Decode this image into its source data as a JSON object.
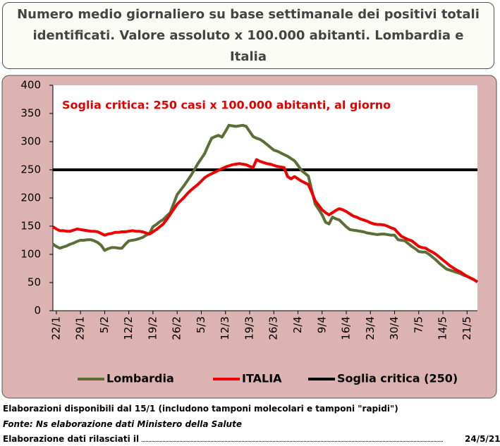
{
  "chart_data": {
    "type": "line",
    "title": "Numero medio giornaliero su base settimanale dei positivi totali identificati. Valore assoluto x 100.000 abitanti. Lombardia e Italia",
    "annotation": "Soglia  critica:  250 casi x 100.000 abitanti,  al giorno",
    "categories": [
      null,
      "22/1",
      null,
      null,
      null,
      null,
      null,
      null,
      "29/1",
      null,
      null,
      null,
      null,
      null,
      null,
      "5/2",
      null,
      null,
      null,
      null,
      null,
      null,
      "12/2",
      null,
      null,
      null,
      null,
      null,
      null,
      "19/2",
      null,
      null,
      null,
      null,
      null,
      null,
      "26/2",
      null,
      null,
      null,
      null,
      null,
      null,
      "5/3",
      null,
      null,
      null,
      null,
      null,
      null,
      "12/3",
      null,
      null,
      null,
      null,
      null,
      null,
      "19/3",
      null,
      null,
      null,
      null,
      null,
      null,
      "26/3",
      null,
      null,
      null,
      null,
      null,
      null,
      "2/4",
      null,
      null,
      null,
      null,
      null,
      null,
      "9/4",
      null,
      null,
      null,
      null,
      null,
      null,
      "16/4",
      null,
      null,
      null,
      null,
      null,
      null,
      "23/4",
      null,
      null,
      null,
      null,
      null,
      null,
      "30/4",
      null,
      null,
      null,
      null,
      null,
      null,
      "7/5",
      null,
      null,
      null,
      null,
      null,
      null,
      "14/5",
      null,
      null,
      null,
      null,
      null,
      null,
      "21/5",
      null,
      null,
      null
    ],
    "series": [
      {
        "name": "Lombardia",
        "color": "#5a6e35",
        "values": [
          118,
          114,
          111,
          113,
          115,
          118,
          120,
          123,
          125,
          125,
          126,
          126,
          124,
          121,
          116,
          107,
          110,
          112,
          112,
          111,
          111,
          118,
          124,
          125,
          126,
          128,
          130,
          134,
          137,
          149,
          153,
          158,
          162,
          168,
          174,
          190,
          206,
          214,
          222,
          231,
          240,
          250,
          261,
          270,
          279,
          293,
          306,
          309,
          311,
          308,
          318,
          329,
          328,
          327,
          328,
          329,
          327,
          318,
          309,
          306,
          304,
          300,
          295,
          290,
          285,
          283,
          280,
          277,
          274,
          270,
          266,
          258,
          249,
          244,
          239,
          214,
          189,
          180,
          170,
          157,
          154,
          166,
          163,
          161,
          155,
          149,
          144,
          143,
          142,
          141,
          140,
          138,
          137,
          136,
          135,
          136,
          136,
          135,
          134,
          134,
          126,
          125,
          124,
          119,
          114,
          110,
          105,
          104,
          104,
          100,
          95,
          90,
          84,
          79,
          74,
          72,
          70,
          68,
          66,
          63,
          61,
          58,
          55,
          51
        ]
      },
      {
        "name": "ITALIA",
        "color": "#ee0000",
        "values": [
          149,
          145,
          142,
          142,
          141,
          141,
          143,
          145,
          144,
          143,
          142,
          141,
          141,
          140,
          137,
          134,
          136,
          137,
          139,
          139,
          140,
          140,
          141,
          142,
          141,
          141,
          140,
          138,
          136,
          140,
          144,
          149,
          154,
          162,
          171,
          180,
          189,
          195,
          201,
          208,
          214,
          219,
          224,
          230,
          236,
          240,
          243,
          246,
          249,
          252,
          255,
          257,
          259,
          260,
          261,
          260,
          259,
          256,
          254,
          268,
          265,
          263,
          261,
          260,
          258,
          256,
          255,
          254,
          238,
          234,
          238,
          234,
          230,
          227,
          224,
          210,
          195,
          187,
          179,
          174,
          170,
          174,
          178,
          181,
          179,
          176,
          172,
          168,
          166,
          163,
          161,
          159,
          156,
          154,
          153,
          153,
          152,
          150,
          147,
          145,
          138,
          132,
          129,
          126,
          124,
          119,
          114,
          112,
          111,
          107,
          104,
          100,
          95,
          90,
          85,
          80,
          76,
          72,
          69,
          65,
          61,
          58,
          55,
          51
        ]
      }
    ],
    "thresholds": [
      {
        "name": "Soglia critica (250)",
        "color": "#000000",
        "value": 250
      }
    ],
    "ylim": [
      0,
      400
    ],
    "yticks": [
      0,
      50,
      100,
      150,
      200,
      250,
      300,
      350,
      400
    ],
    "grid": false
  },
  "footer": {
    "line1": "Elaborazioni disponibili dal 15/1 (includono tamponi molecolari e tamponi \"rapidi\")",
    "source": "Fonte: Ns elaborazione dati Ministero della Salute",
    "release": "Elaborazione dati rilasciati il",
    "date": "24/5/21"
  }
}
